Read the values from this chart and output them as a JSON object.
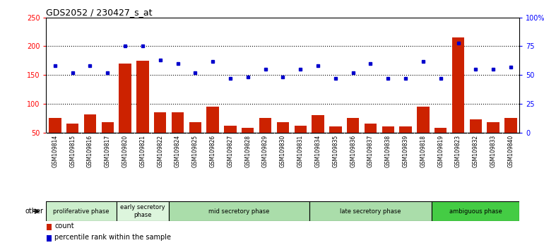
{
  "title": "GDS2052 / 230427_s_at",
  "samples": [
    "GSM109814",
    "GSM109815",
    "GSM109816",
    "GSM109817",
    "GSM109820",
    "GSM109821",
    "GSM109822",
    "GSM109824",
    "GSM109825",
    "GSM109826",
    "GSM109827",
    "GSM109828",
    "GSM109829",
    "GSM109830",
    "GSM109831",
    "GSM109834",
    "GSM109835",
    "GSM109836",
    "GSM109837",
    "GSM109838",
    "GSM109839",
    "GSM109818",
    "GSM109819",
    "GSM109823",
    "GSM109832",
    "GSM109833",
    "GSM109840"
  ],
  "counts": [
    75,
    65,
    82,
    68,
    170,
    175,
    85,
    85,
    68,
    95,
    62,
    58,
    75,
    68,
    62,
    80,
    60,
    75,
    65,
    60,
    60,
    95,
    58,
    215,
    73,
    68,
    75
  ],
  "percentiles": [
    58,
    52,
    58,
    52,
    75,
    75,
    63,
    60,
    52,
    62,
    47,
    48,
    55,
    48,
    55,
    58,
    47,
    52,
    60,
    47,
    47,
    62,
    47,
    78,
    55,
    55,
    57
  ],
  "phases": [
    {
      "label": "proliferative phase",
      "start": 0,
      "end": 4,
      "color": "#cceecc"
    },
    {
      "label": "early secretory\nphase",
      "start": 4,
      "end": 7,
      "color": "#ddf0dd"
    },
    {
      "label": "mid secretory phase",
      "start": 7,
      "end": 15,
      "color": "#aaddaa"
    },
    {
      "label": "late secretory phase",
      "start": 15,
      "end": 22,
      "color": "#aaddaa"
    },
    {
      "label": "ambiguous phase",
      "start": 22,
      "end": 27,
      "color": "#44cc44"
    }
  ],
  "ylim_left": [
    50,
    250
  ],
  "ylim_right": [
    0,
    100
  ],
  "yticks_left": [
    50,
    100,
    150,
    200,
    250
  ],
  "yticks_right": [
    0,
    25,
    50,
    75,
    100
  ],
  "ytick_labels_right": [
    "0",
    "25",
    "50",
    "75",
    "100%"
  ],
  "bar_color": "#cc2200",
  "dot_color": "#0000cc",
  "grid_color": "#000000",
  "chart_bg": "#ffffff",
  "label_bg": "#d0d0d0",
  "other_label": "other"
}
